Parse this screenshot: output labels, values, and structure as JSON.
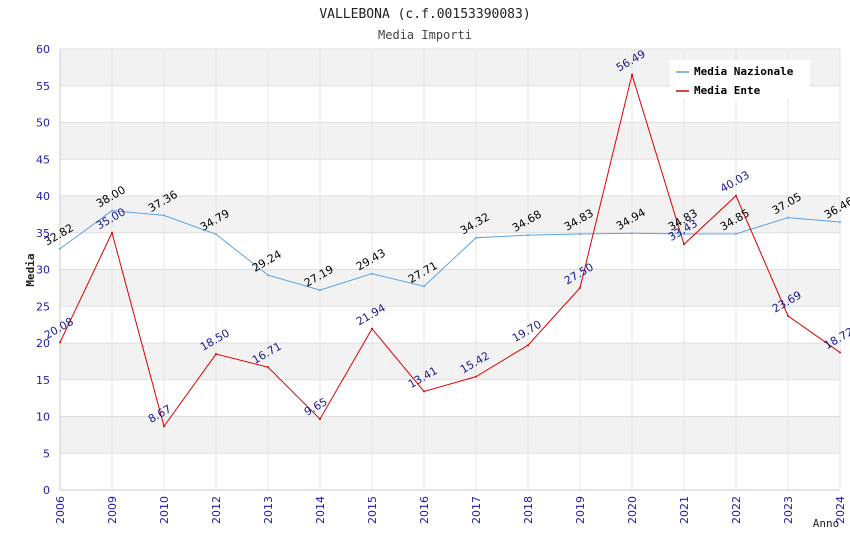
{
  "chart_data": {
    "type": "line",
    "title": "VALLEBONA (c.f.00153390083)",
    "subtitle": "Media Importi",
    "xlabel": "Anno",
    "ylabel": "Media",
    "ylim": [
      0,
      60
    ],
    "y_ticks": [
      0,
      5,
      10,
      15,
      20,
      25,
      30,
      35,
      40,
      45,
      50,
      55,
      60
    ],
    "categories": [
      "2006",
      "2009",
      "2010",
      "2012",
      "2013",
      "2014",
      "2015",
      "2016",
      "2017",
      "2018",
      "2019",
      "2020",
      "2021",
      "2022",
      "2023",
      "2024"
    ],
    "grid": true,
    "legend_position": "top-right",
    "series": [
      {
        "name": "Media Nazionale",
        "color": "#5ba3e0",
        "label_color": "#000000",
        "values": [
          32.82,
          38.0,
          37.36,
          34.79,
          29.24,
          27.19,
          29.43,
          27.71,
          34.32,
          34.68,
          34.83,
          34.94,
          34.83,
          34.85,
          37.05,
          36.46
        ],
        "labels": [
          "32.82",
          "38.00",
          "37.36",
          "34.79",
          "29.24",
          "27.19",
          "29.43",
          "27.71",
          "34.32",
          "34.68",
          "34.83",
          "34.94",
          "34.83",
          "34.85",
          "37.05",
          "36.46"
        ]
      },
      {
        "name": "Media Ente",
        "color": "#e00000",
        "label_color": "#1a1a8c",
        "values": [
          20.08,
          35.0,
          8.67,
          18.5,
          16.71,
          9.65,
          21.94,
          13.41,
          15.42,
          19.7,
          27.5,
          56.49,
          33.43,
          40.03,
          23.69,
          18.72
        ],
        "labels": [
          "20.08",
          "35.00",
          "8.67",
          "18.50",
          "16.71",
          "9.65",
          "21.94",
          "13.41",
          "15.42",
          "19.70",
          "27.50",
          "56.49",
          "33.43",
          "40.03",
          "23.69",
          "18.72"
        ]
      }
    ]
  }
}
